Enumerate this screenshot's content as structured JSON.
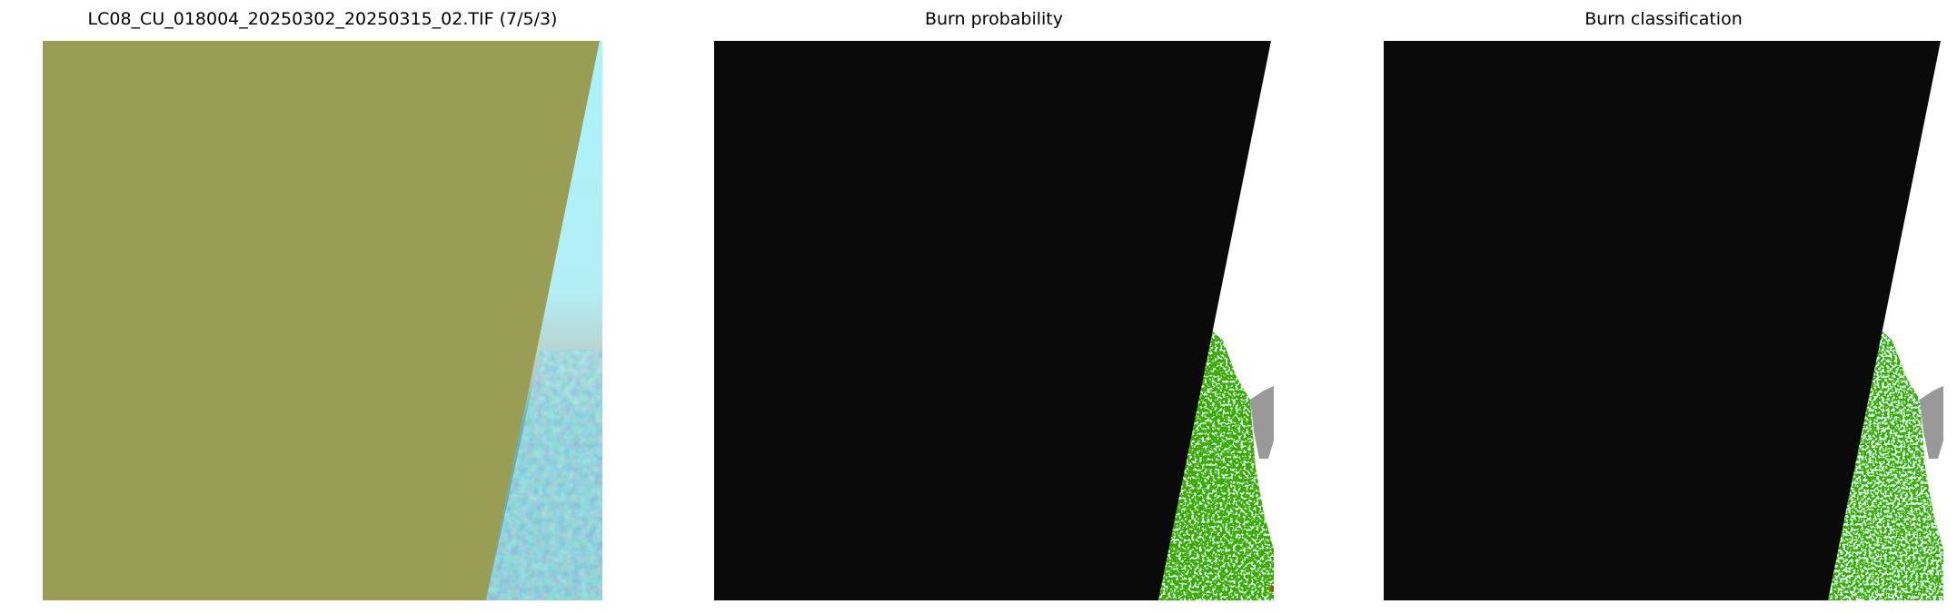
{
  "chart_data": [
    {
      "type": "heatmap",
      "title": "LC08_CU_018004_20250302_20250315_02.TIF (7/5/3)",
      "colors": {
        "nodata": "#9a9e55",
        "cloud": "#b9f4f8",
        "land": "#4fa8b8"
      }
    },
    {
      "type": "heatmap",
      "title": "Burn probability",
      "colors": {
        "nodata": "#0a0a0a",
        "background": "#ffffff",
        "low": "#b3ffe6",
        "mid": "#3aa800",
        "masked": "#999999",
        "high": "#e0201a"
      }
    },
    {
      "type": "heatmap",
      "title": "Burn classification",
      "colors": {
        "nodata": "#0a0a0a",
        "background": "#ffffff",
        "unburned": "#b3ffe6",
        "class": "#3aa800",
        "masked": "#999999"
      }
    }
  ]
}
